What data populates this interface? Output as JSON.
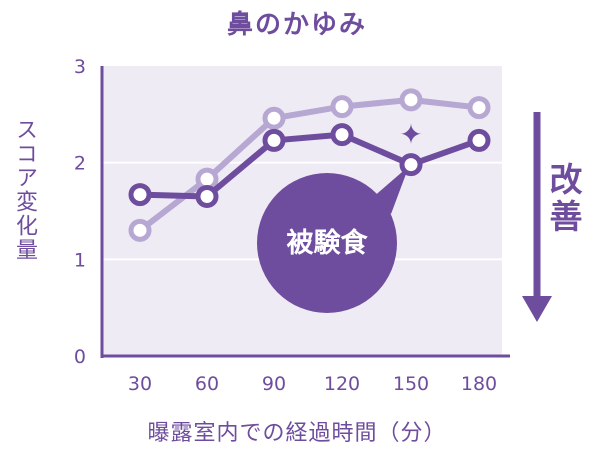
{
  "colors": {
    "accent": "#6f4d9e",
    "plot_bg": "#eeebf4",
    "grid": "#ffffff",
    "series_light": "#b7a7d3",
    "series_dark": "#6f4d9e"
  },
  "improvement_label": "改善",
  "callout_label": "被験食",
  "callout_marker": "✦",
  "chart_data": {
    "type": "line",
    "title": "鼻のかゆみ",
    "xlabel": "曝露室内での経過時間（分）",
    "ylabel": "スコア変化量",
    "x": [
      30,
      60,
      90,
      120,
      150,
      180
    ],
    "yticks": [
      "0",
      "1",
      "2",
      "3"
    ],
    "ylim": [
      0,
      3
    ],
    "grid": true,
    "series": [
      {
        "values": [
          1.3,
          1.83,
          2.46,
          2.58,
          2.65,
          2.57
        ]
      },
      {
        "name": "被験食",
        "values": [
          1.67,
          1.65,
          2.23,
          2.29,
          1.98,
          2.23
        ]
      }
    ]
  }
}
